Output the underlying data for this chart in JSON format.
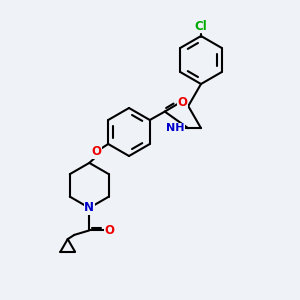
{
  "background_color": "#eff3f7",
  "atom_colors": {
    "C": "#000000",
    "H": "#606060",
    "N": "#0000cc",
    "O": "#ee0000",
    "Cl": "#00aa00"
  },
  "bond_color": "#000000",
  "bond_width": 1.5,
  "font_size_atom": 8.5,
  "fig_size": [
    3.0,
    3.0
  ],
  "dpi": 100
}
